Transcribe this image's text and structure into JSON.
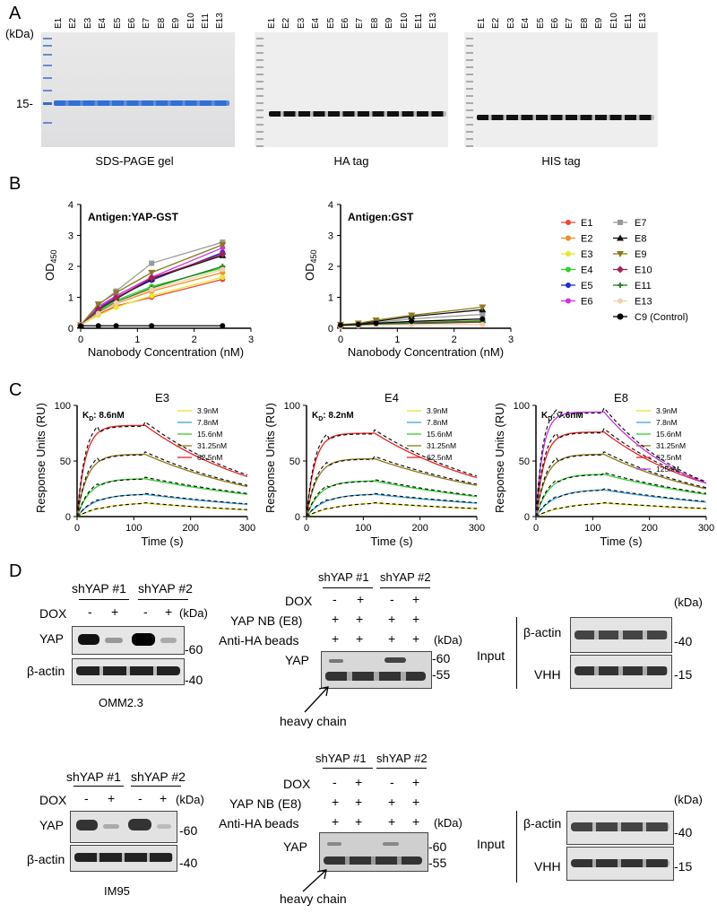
{
  "panels": {
    "A": "A",
    "B": "B",
    "C": "C",
    "D": "D"
  },
  "panel_a": {
    "kda_label": "(kDa)",
    "marker_15": "15-",
    "lanes": [
      "E1",
      "E2",
      "E3",
      "E4",
      "E5",
      "E6",
      "E7",
      "E8",
      "E9",
      "E10",
      "E11",
      "E13"
    ],
    "captions": {
      "sds": "SDS-PAGE gel",
      "ha": "HA tag",
      "his": "HIS tag"
    }
  },
  "colors": {
    "E1": "#f2433d",
    "E2": "#f28c22",
    "E3": "#e8e82a",
    "E4": "#2fd12f",
    "E5": "#1e2ad8",
    "E6": "#d22ee8",
    "E7": "#9a9a9a",
    "E8": "#111111",
    "E9": "#8b7a1a",
    "E10": "#a51f55",
    "E11": "#1f7a1f",
    "E13": "#f2cfa6",
    "C9": "#000000",
    "c_3_9": "#e6e62a",
    "c_7_8": "#3aa6d6",
    "c_15_6": "#2ed12e",
    "c_31_25": "#8b7a1a",
    "c_62_5": "#e82222",
    "c_125": "#c233e6"
  },
  "chart_data": [
    {
      "type": "line",
      "panel": "B-left",
      "title": "Antigen:YAP-GST",
      "xlabel": "Nanobody Concentration (nM)",
      "ylabel": "OD450",
      "xlim": [
        0,
        3
      ],
      "ylim": [
        0,
        4
      ],
      "xticks": [
        "0",
        "1",
        "2",
        "3"
      ],
      "yticks": [
        "0",
        "1",
        "2",
        "3",
        "4"
      ],
      "x": [
        0,
        0.3125,
        0.625,
        1.25,
        2.5
      ],
      "series": [
        {
          "name": "E1",
          "values": [
            0.1,
            0.45,
            0.72,
            1.0,
            1.58
          ]
        },
        {
          "name": "E2",
          "values": [
            0.1,
            0.5,
            0.8,
            1.2,
            1.8
          ]
        },
        {
          "name": "E3",
          "values": [
            0.1,
            0.42,
            0.68,
            1.05,
            1.65
          ]
        },
        {
          "name": "E4",
          "values": [
            0.1,
            0.55,
            0.9,
            1.35,
            1.95
          ]
        },
        {
          "name": "E5",
          "values": [
            0.1,
            0.65,
            1.0,
            1.55,
            2.45
          ]
        },
        {
          "name": "E6",
          "values": [
            0.1,
            0.7,
            1.05,
            1.65,
            2.6
          ]
        },
        {
          "name": "E7",
          "values": [
            0.1,
            0.75,
            1.2,
            2.1,
            2.78
          ]
        },
        {
          "name": "E8",
          "values": [
            0.1,
            0.6,
            0.95,
            1.6,
            2.35
          ]
        },
        {
          "name": "E9",
          "values": [
            0.1,
            0.78,
            1.15,
            1.8,
            2.7
          ]
        },
        {
          "name": "E10",
          "values": [
            0.1,
            0.62,
            0.98,
            1.62,
            2.4
          ]
        },
        {
          "name": "E11",
          "values": [
            0.1,
            0.5,
            0.85,
            1.3,
            2.0
          ]
        },
        {
          "name": "E13",
          "values": [
            0.1,
            0.48,
            0.82,
            1.25,
            1.9
          ]
        },
        {
          "name": "C9 (Control)",
          "values": [
            0.08,
            0.08,
            0.08,
            0.08,
            0.08
          ]
        }
      ]
    },
    {
      "type": "line",
      "panel": "B-right",
      "title": "Antigen:GST",
      "xlabel": "Nanobody Concentration (nM)",
      "ylabel": "OD450",
      "xlim": [
        0,
        3
      ],
      "ylim": [
        0,
        4
      ],
      "xticks": [
        "0",
        "1",
        "2",
        "3"
      ],
      "yticks": [
        "0",
        "1",
        "2",
        "3",
        "4"
      ],
      "x": [
        0,
        0.3125,
        0.625,
        1.25,
        2.5
      ],
      "series": [
        {
          "name": "E1",
          "values": [
            0.08,
            0.1,
            0.12,
            0.16,
            0.2
          ]
        },
        {
          "name": "E2",
          "values": [
            0.08,
            0.1,
            0.13,
            0.18,
            0.25
          ]
        },
        {
          "name": "E3",
          "values": [
            0.08,
            0.1,
            0.12,
            0.15,
            0.2
          ]
        },
        {
          "name": "E4",
          "values": [
            0.08,
            0.1,
            0.13,
            0.18,
            0.24
          ]
        },
        {
          "name": "E5",
          "values": [
            0.08,
            0.1,
            0.13,
            0.17,
            0.22
          ]
        },
        {
          "name": "E6",
          "values": [
            0.08,
            0.1,
            0.13,
            0.17,
            0.22
          ]
        },
        {
          "name": "E7",
          "values": [
            0.1,
            0.12,
            0.18,
            0.3,
            0.45
          ]
        },
        {
          "name": "E8",
          "values": [
            0.1,
            0.14,
            0.22,
            0.38,
            0.6
          ]
        },
        {
          "name": "E9",
          "values": [
            0.12,
            0.16,
            0.26,
            0.42,
            0.68
          ]
        },
        {
          "name": "E10",
          "values": [
            0.08,
            0.1,
            0.12,
            0.15,
            0.2
          ]
        },
        {
          "name": "E11",
          "values": [
            0.08,
            0.1,
            0.13,
            0.17,
            0.22
          ]
        },
        {
          "name": "E13",
          "values": [
            0.06,
            0.08,
            0.1,
            0.12,
            0.12
          ]
        },
        {
          "name": "C9 (Control)",
          "values": [
            0.1,
            0.12,
            0.16,
            0.22,
            0.3
          ]
        }
      ]
    },
    {
      "type": "line",
      "panel": "C-E3",
      "title": "E3",
      "kd_prefix": "K",
      "kd_sub": "D",
      "kd_value": ": 8.6nM",
      "xlabel": "Time (s)",
      "ylabel": "Response Units (RU)",
      "xlim": [
        0,
        300
      ],
      "ylim": [
        0,
        100
      ],
      "xticks": [
        "0",
        "100",
        "200",
        "300"
      ],
      "yticks": [
        "0",
        "50",
        "100"
      ],
      "series": [
        {
          "name": "3.9nM",
          "color_key": "c_3_9",
          "rmax": 12,
          "end": 6
        },
        {
          "name": "7.8nM",
          "color_key": "c_7_8",
          "rmax": 20,
          "end": 11
        },
        {
          "name": "15.6nM",
          "color_key": "c_15_6",
          "rmax": 34,
          "end": 20
        },
        {
          "name": "31.25nM",
          "color_key": "c_31_25",
          "rmax": 56,
          "end": 27
        },
        {
          "name": "62.5nM",
          "color_key": "c_62_5",
          "rmax": 82,
          "end": 36
        }
      ]
    },
    {
      "type": "line",
      "panel": "C-E4",
      "title": "E4",
      "kd_prefix": "K",
      "kd_sub": "D",
      "kd_value": ": 8.2nM",
      "xlabel": "Time (s)",
      "ylabel": "Response Units (RU)",
      "xlim": [
        0,
        300
      ],
      "ylim": [
        0,
        100
      ],
      "xticks": [
        "0",
        "100",
        "200",
        "300"
      ],
      "yticks": [
        "0",
        "50",
        "100"
      ],
      "series": [
        {
          "name": "3.9nM",
          "color_key": "c_3_9",
          "rmax": 12,
          "end": 7
        },
        {
          "name": "7.8nM",
          "color_key": "c_7_8",
          "rmax": 20,
          "end": 12
        },
        {
          "name": "15.6nM",
          "color_key": "c_15_6",
          "rmax": 32,
          "end": 18
        },
        {
          "name": "31.25nM",
          "color_key": "c_31_25",
          "rmax": 52,
          "end": 28
        },
        {
          "name": "62.5nM",
          "color_key": "c_62_5",
          "rmax": 75,
          "end": 35
        }
      ]
    },
    {
      "type": "line",
      "panel": "C-E8",
      "title": "E8",
      "kd_prefix": "K",
      "kd_sub": "D",
      "kd_value": ": 7.6nM",
      "xlabel": "Time (s)",
      "ylabel": "Response Units (RU)",
      "xlim": [
        0,
        300
      ],
      "ylim": [
        0,
        100
      ],
      "xticks": [
        "0",
        "100",
        "200",
        "300"
      ],
      "yticks": [
        "0",
        "50",
        "100"
      ],
      "series": [
        {
          "name": "3.9nM",
          "color_key": "c_3_9",
          "rmax": 12,
          "end": 7
        },
        {
          "name": "7.8nM",
          "color_key": "c_7_8",
          "rmax": 24,
          "end": 13
        },
        {
          "name": "15.6nM",
          "color_key": "c_15_6",
          "rmax": 38,
          "end": 20
        },
        {
          "name": "31.25nM",
          "color_key": "c_31_25",
          "rmax": 56,
          "end": 25
        },
        {
          "name": "62.5nM",
          "color_key": "c_62_5",
          "rmax": 76,
          "end": 30
        },
        {
          "name": "125nM",
          "color_key": "c_125",
          "rmax": 94,
          "end": 30
        }
      ]
    }
  ],
  "panel_d": {
    "kda": "(kDa)",
    "shyap1": "shYAP #1",
    "shyap2": "shYAP #2",
    "dox": "DOX",
    "minus": "-",
    "plus": "+",
    "yap": "YAP",
    "bactin": "β-actin",
    "vhh": "VHH",
    "nb": "YAP NB (E8)",
    "beads": "Anti-HA beads",
    "m60": "-60",
    "m55": "-55",
    "m40": "-40",
    "m15": "-15",
    "heavy": "heavy chain",
    "input": "Input",
    "cell1": "OMM2.3",
    "cell2": "IM95"
  }
}
